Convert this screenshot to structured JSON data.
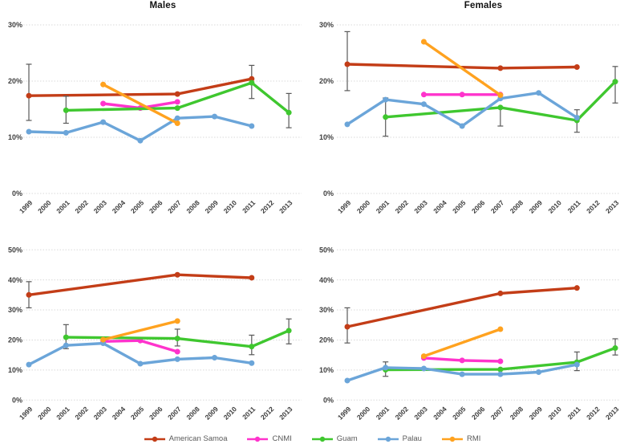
{
  "page": {
    "background": "#FFFFFF"
  },
  "colors": {
    "error_bar": "#595959",
    "gridline": "#D9D9D9",
    "tick_text": "#404040",
    "legend_text": "#595959",
    "title_text": "#111111"
  },
  "series_colors": {
    "American Samoa": "#C33D17",
    "CNMI": "#FF33CC",
    "Guam": "#3FC72F",
    "Palau": "#6BA5D9",
    "RMI": "#FFA21F"
  },
  "legend": {
    "position": "bottom-center",
    "items": [
      "American Samoa",
      "CNMI",
      "Guam",
      "Palau",
      "RMI"
    ]
  },
  "chart_data": [
    {
      "type": "line",
      "position": "top-left",
      "title": "Males",
      "xlabel": "",
      "ylabel": "",
      "ylim": [
        0,
        30
      ],
      "grid": true,
      "yticks": [
        {
          "label": "0%",
          "value": 0
        },
        {
          "label": "10%",
          "value": 10
        },
        {
          "label": "20%",
          "value": 20
        },
        {
          "label": "30%",
          "value": 30
        }
      ],
      "categories": [
        "1999",
        "2000",
        "2001",
        "2002",
        "2003",
        "2004",
        "2005",
        "2006",
        "2007",
        "2008",
        "2009",
        "2010",
        "2011",
        "2012",
        "2013"
      ],
      "series": [
        {
          "name": "American Samoa",
          "points": [
            [
              1999,
              17.4,
              13.0,
              23.0
            ],
            [
              2007,
              17.7
            ],
            [
              2011,
              20.4,
              16.9,
              22.8
            ]
          ]
        },
        {
          "name": "CNMI",
          "points": [
            [
              2003,
              16.0
            ],
            [
              2005,
              15.2
            ],
            [
              2007,
              16.3
            ]
          ]
        },
        {
          "name": "Guam",
          "points": [
            [
              2001,
              14.8,
              12.5,
              17.3
            ],
            [
              2007,
              15.2
            ],
            [
              2011,
              19.7
            ],
            [
              2013,
              14.4,
              11.7,
              17.8
            ]
          ]
        },
        {
          "name": "Palau",
          "points": [
            [
              1999,
              11.0
            ],
            [
              2001,
              10.8
            ],
            [
              2003,
              12.7
            ],
            [
              2005,
              9.4
            ],
            [
              2007,
              13.4
            ],
            [
              2009,
              13.7
            ],
            [
              2011,
              12.0
            ]
          ]
        },
        {
          "name": "RMI",
          "points": [
            [
              2003,
              19.4
            ],
            [
              2007,
              12.5
            ]
          ]
        }
      ]
    },
    {
      "type": "line",
      "position": "top-right",
      "title": "Females",
      "xlabel": "",
      "ylabel": "",
      "ylim": [
        0,
        30
      ],
      "grid": true,
      "yticks": [
        {
          "label": "0%",
          "value": 0
        },
        {
          "label": "10%",
          "value": 10
        },
        {
          "label": "20%",
          "value": 20
        },
        {
          "label": "30%",
          "value": 30
        }
      ],
      "categories": [
        "1999",
        "2000",
        "2001",
        "2002",
        "2003",
        "2004",
        "2005",
        "2006",
        "2007",
        "2008",
        "2009",
        "2010",
        "2011",
        "2012",
        "2013"
      ],
      "series": [
        {
          "name": "American Samoa",
          "points": [
            [
              1999,
              23.0,
              18.3,
              28.8
            ],
            [
              2007,
              22.3
            ],
            [
              2011,
              22.5
            ]
          ]
        },
        {
          "name": "CNMI",
          "points": [
            [
              2003,
              17.6
            ],
            [
              2005,
              17.6
            ],
            [
              2007,
              17.6
            ]
          ]
        },
        {
          "name": "Guam",
          "points": [
            [
              2001,
              13.6,
              10.2,
              17.0
            ],
            [
              2007,
              15.3,
              12.0,
              15.4
            ],
            [
              2011,
              13.0,
              10.9,
              14.9
            ],
            [
              2013,
              19.9,
              16.1,
              22.6
            ]
          ]
        },
        {
          "name": "Palau",
          "points": [
            [
              1999,
              12.3
            ],
            [
              2001,
              16.7
            ],
            [
              2003,
              15.9
            ],
            [
              2005,
              12.0
            ],
            [
              2007,
              16.9
            ],
            [
              2009,
              17.9
            ],
            [
              2011,
              13.5
            ]
          ]
        },
        {
          "name": "RMI",
          "points": [
            [
              2003,
              27.0
            ],
            [
              2007,
              17.5
            ]
          ]
        }
      ]
    },
    {
      "type": "line",
      "position": "bottom-left",
      "title": "",
      "xlabel": "",
      "ylabel": "",
      "ylim": [
        0,
        50
      ],
      "grid": true,
      "yticks": [
        {
          "label": "0%",
          "value": 0
        },
        {
          "label": "10%",
          "value": 10
        },
        {
          "label": "20%",
          "value": 20
        },
        {
          "label": "30%",
          "value": 30
        },
        {
          "label": "40%",
          "value": 40
        },
        {
          "label": "50%",
          "value": 50
        }
      ],
      "categories": [
        "1999",
        "2000",
        "2001",
        "2002",
        "2003",
        "2004",
        "2005",
        "2006",
        "2007",
        "2008",
        "2009",
        "2010",
        "2011",
        "2012",
        "2013"
      ],
      "series": [
        {
          "name": "American Samoa",
          "points": [
            [
              1999,
              35.0,
              30.7,
              39.4
            ],
            [
              2007,
              41.7
            ],
            [
              2011,
              40.7
            ]
          ]
        },
        {
          "name": "CNMI",
          "points": [
            [
              2003,
              19.5
            ],
            [
              2005,
              19.8
            ],
            [
              2007,
              16.1
            ]
          ]
        },
        {
          "name": "Guam",
          "points": [
            [
              2001,
              20.9,
              17.1,
              25.1
            ],
            [
              2007,
              20.5,
              18.0,
              23.6
            ],
            [
              2011,
              17.8,
              15.1,
              21.6
            ],
            [
              2013,
              23.1,
              18.7,
              27.0
            ]
          ]
        },
        {
          "name": "Palau",
          "points": [
            [
              1999,
              11.8
            ],
            [
              2001,
              18.2
            ],
            [
              2003,
              18.9
            ],
            [
              2005,
              12.1
            ],
            [
              2007,
              13.6
            ],
            [
              2009,
              14.1
            ],
            [
              2011,
              12.3
            ]
          ]
        },
        {
          "name": "RMI",
          "points": [
            [
              2003,
              20.1
            ],
            [
              2007,
              26.3
            ]
          ]
        }
      ]
    },
    {
      "type": "line",
      "position": "bottom-right",
      "title": "",
      "xlabel": "",
      "ylabel": "",
      "ylim": [
        0,
        50
      ],
      "grid": true,
      "yticks": [
        {
          "label": "0%",
          "value": 0
        },
        {
          "label": "10%",
          "value": 10
        },
        {
          "label": "20%",
          "value": 20
        },
        {
          "label": "30%",
          "value": 30
        },
        {
          "label": "40%",
          "value": 40
        },
        {
          "label": "50%",
          "value": 50
        }
      ],
      "categories": [
        "1999",
        "2000",
        "2001",
        "2002",
        "2003",
        "2004",
        "2005",
        "2006",
        "2007",
        "2008",
        "2009",
        "2010",
        "2011",
        "2012",
        "2013"
      ],
      "series": [
        {
          "name": "American Samoa",
          "points": [
            [
              1999,
              24.4,
              19.0,
              30.7
            ],
            [
              2007,
              35.5
            ],
            [
              2011,
              37.3
            ]
          ]
        },
        {
          "name": "CNMI",
          "points": [
            [
              2003,
              14.0
            ],
            [
              2005,
              13.2
            ],
            [
              2007,
              12.9
            ]
          ]
        },
        {
          "name": "Guam",
          "points": [
            [
              2001,
              10.1,
              7.9,
              12.7
            ],
            [
              2007,
              10.2
            ],
            [
              2011,
              12.6,
              9.8,
              16.0
            ],
            [
              2013,
              17.3,
              15.0,
              20.4
            ]
          ]
        },
        {
          "name": "Palau",
          "points": [
            [
              1999,
              6.5
            ],
            [
              2001,
              10.8
            ],
            [
              2003,
              10.5
            ],
            [
              2005,
              8.6
            ],
            [
              2007,
              8.6
            ],
            [
              2009,
              9.3
            ],
            [
              2011,
              11.8
            ]
          ]
        },
        {
          "name": "RMI",
          "points": [
            [
              2003,
              14.6
            ],
            [
              2007,
              23.6
            ]
          ]
        }
      ]
    }
  ]
}
